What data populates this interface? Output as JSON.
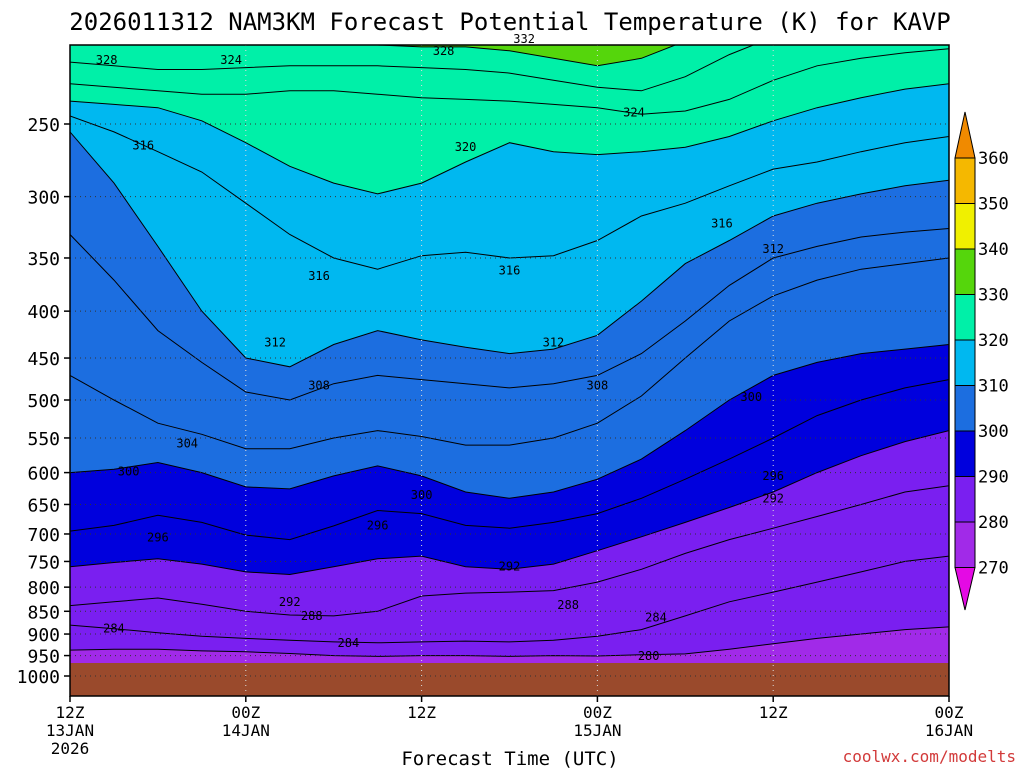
{
  "chart_data": {
    "type": "heatmap",
    "title": "2026011312 NAM3KM Forecast Potential Temperature (K) for KAVP",
    "xlabel": "Forecast Time (UTC)",
    "ylabel": "",
    "credit": "coolwx.com/modelts",
    "x_hours": [
      0,
      60
    ],
    "x_ticks": [
      {
        "hour": 0,
        "line1": "12Z",
        "line2": "13JAN",
        "line3": "2026"
      },
      {
        "hour": 12,
        "line1": "00Z",
        "line2": "14JAN",
        "line3": ""
      },
      {
        "hour": 24,
        "line1": "12Z",
        "line2": "",
        "line3": ""
      },
      {
        "hour": 36,
        "line1": "00Z",
        "line2": "15JAN",
        "line3": ""
      },
      {
        "hour": 48,
        "line1": "12Z",
        "line2": "",
        "line3": ""
      },
      {
        "hour": 60,
        "line1": "00Z",
        "line2": "16JAN",
        "line3": ""
      }
    ],
    "y_ticks": [
      250,
      300,
      350,
      400,
      450,
      500,
      550,
      600,
      650,
      700,
      750,
      800,
      850,
      900,
      950,
      1000
    ],
    "ylim_hpa": [
      200,
      1000
    ],
    "colorbar": {
      "levels": [
        270,
        280,
        290,
        300,
        310,
        320,
        330,
        340,
        350,
        360
      ],
      "colors": [
        "#e40ae4",
        "#a12ae8",
        "#7a1ff0",
        "#0000dd",
        "#1c6ee0",
        "#00b8f0",
        "#00f0a8",
        "#55d60c",
        "#f0f000",
        "#f5b800",
        "#f08a00"
      ]
    },
    "surface_hpa": 965,
    "series": [
      {
        "name": "280K",
        "theta": 280,
        "values": [
          937,
          935,
          935,
          939,
          941,
          945,
          950,
          952,
          950,
          950,
          952,
          950,
          951,
          948,
          946,
          935,
          922,
          910,
          900,
          890,
          884
        ]
      },
      {
        "name": "284K",
        "theta": 284,
        "values": [
          880,
          888,
          897,
          905,
          910,
          914,
          918,
          920,
          918,
          916,
          918,
          914,
          905,
          890,
          860,
          830,
          810,
          790,
          770,
          750,
          740
        ]
      },
      {
        "name": "288K",
        "theta": 288,
        "values": [
          838,
          830,
          822,
          835,
          850,
          858,
          860,
          850,
          818,
          812,
          810,
          807,
          790,
          765,
          735,
          710,
          690,
          670,
          650,
          630,
          620
        ]
      },
      {
        "name": "292K",
        "theta": 292,
        "values": [
          760,
          752,
          745,
          755,
          770,
          775,
          760,
          745,
          740,
          760,
          765,
          755,
          730,
          705,
          680,
          655,
          630,
          600,
          575,
          555,
          540
        ]
      },
      {
        "name": "296K",
        "theta": 296,
        "values": [
          695,
          685,
          668,
          680,
          702,
          710,
          686,
          660,
          665,
          685,
          690,
          680,
          665,
          640,
          610,
          580,
          550,
          520,
          500,
          485,
          475
        ]
      },
      {
        "name": "300K",
        "theta": 300,
        "values": [
          600,
          595,
          585,
          600,
          622,
          625,
          605,
          590,
          605,
          630,
          640,
          630,
          610,
          580,
          540,
          500,
          470,
          455,
          445,
          440,
          435
        ]
      },
      {
        "name": "304K",
        "theta": 304,
        "values": [
          470,
          500,
          530,
          545,
          565,
          565,
          550,
          540,
          548,
          560,
          560,
          550,
          530,
          495,
          450,
          410,
          385,
          370,
          360,
          355,
          350
        ]
      },
      {
        "name": "308K",
        "theta": 308,
        "values": [
          330,
          370,
          420,
          455,
          490,
          500,
          480,
          470,
          475,
          480,
          485,
          480,
          470,
          445,
          410,
          375,
          350,
          340,
          332,
          328,
          325
        ]
      },
      {
        "name": "312K",
        "theta": 312,
        "values": [
          255,
          290,
          340,
          400,
          450,
          460,
          435,
          420,
          430,
          438,
          445,
          440,
          425,
          390,
          355,
          335,
          315,
          305,
          298,
          292,
          288
        ]
      },
      {
        "name": "316K",
        "theta": 316,
        "values": [
          245,
          255,
          268,
          282,
          305,
          330,
          350,
          360,
          348,
          345,
          350,
          348,
          335,
          315,
          305,
          292,
          280,
          275,
          268,
          262,
          258
        ]
      },
      {
        "name": "320K",
        "theta": 320,
        "values": [
          236,
          238,
          240,
          248,
          262,
          278,
          290,
          298,
          290,
          275,
          262,
          268,
          270,
          268,
          265,
          258,
          248,
          240,
          234,
          229,
          226
        ]
      },
      {
        "name": "324K",
        "theta": 324,
        "values": [
          226,
          228,
          230,
          232,
          232,
          230,
          230,
          232,
          234,
          235,
          236,
          238,
          240,
          244,
          242,
          235,
          224,
          216,
          212,
          209,
          207
        ]
      },
      {
        "name": "328K",
        "theta": 328,
        "values": [
          214,
          216,
          218,
          218,
          217,
          216,
          216,
          216,
          217,
          218,
          220,
          224,
          228,
          230,
          222,
          210,
          201,
          200,
          200,
          200,
          200
        ]
      },
      {
        "name": "332K",
        "theta": 332,
        "values": [
          203,
          204,
          205,
          205,
          204,
          204,
          204,
          205,
          206,
          206,
          208,
          212,
          216,
          212,
          203,
          200,
          200,
          200,
          200,
          200,
          200
        ]
      }
    ],
    "contour_labels": [
      {
        "text": "328",
        "hour": 2.5,
        "hpa": 213
      },
      {
        "text": "324",
        "hour": 11,
        "hpa": 213
      },
      {
        "text": "328",
        "hour": 25.5,
        "hpa": 208
      },
      {
        "text": "332",
        "hour": 31,
        "hpa": 202
      },
      {
        "text": "316",
        "hour": 5,
        "hpa": 264
      },
      {
        "text": "320",
        "hour": 27,
        "hpa": 265
      },
      {
        "text": "324",
        "hour": 38.5,
        "hpa": 243
      },
      {
        "text": "316",
        "hour": 44.5,
        "hpa": 321
      },
      {
        "text": "312",
        "hour": 48,
        "hpa": 342
      },
      {
        "text": "316",
        "hour": 17,
        "hpa": 366
      },
      {
        "text": "316",
        "hour": 30,
        "hpa": 361
      },
      {
        "text": "312",
        "hour": 14,
        "hpa": 433
      },
      {
        "text": "312",
        "hour": 33,
        "hpa": 433
      },
      {
        "text": "308",
        "hour": 17,
        "hpa": 482
      },
      {
        "text": "308",
        "hour": 36,
        "hpa": 482
      },
      {
        "text": "300",
        "hour": 46.5,
        "hpa": 496
      },
      {
        "text": "304",
        "hour": 8,
        "hpa": 558
      },
      {
        "text": "300",
        "hour": 4,
        "hpa": 598
      },
      {
        "text": "300",
        "hour": 24,
        "hpa": 635
      },
      {
        "text": "296",
        "hour": 48,
        "hpa": 605
      },
      {
        "text": "292",
        "hour": 48,
        "hpa": 640
      },
      {
        "text": "296",
        "hour": 6,
        "hpa": 706
      },
      {
        "text": "296",
        "hour": 21,
        "hpa": 685
      },
      {
        "text": "292",
        "hour": 30,
        "hpa": 760
      },
      {
        "text": "292",
        "hour": 15,
        "hpa": 830
      },
      {
        "text": "288",
        "hour": 16.5,
        "hpa": 860
      },
      {
        "text": "288",
        "hour": 34,
        "hpa": 837
      },
      {
        "text": "284",
        "hour": 3,
        "hpa": 888
      },
      {
        "text": "284",
        "hour": 19,
        "hpa": 920
      },
      {
        "text": "284",
        "hour": 40,
        "hpa": 863
      },
      {
        "text": "280",
        "hour": 39.5,
        "hpa": 951
      }
    ]
  }
}
